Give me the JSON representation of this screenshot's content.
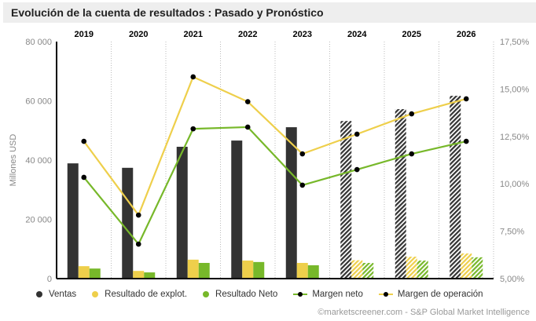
{
  "title": "Evolución de la cuenta de resultados : Pasado y Pronóstico",
  "colors": {
    "ventas": "#333333",
    "explot": "#eecf4b",
    "neto": "#77b82a",
    "margen_neto_line": "#77b82a",
    "margen_op_line": "#eecf4b",
    "title_bg": "#eeeeee"
  },
  "credit": "©marketscreener.com - S&P Global Market Intelligence",
  "chart_data": {
    "type": "bar",
    "title": "Evolución de la cuenta de resultados : Pasado y Pronóstico",
    "categories": [
      "2019",
      "2020",
      "2021",
      "2022",
      "2023",
      "2024",
      "2025",
      "2026"
    ],
    "forecast_from": "2024",
    "ylabel": "Millones USD",
    "ylim": [
      0,
      80000
    ],
    "yticks": [
      0,
      20000,
      40000,
      60000,
      80000
    ],
    "ytick_labels": [
      "0",
      "20 000",
      "40 000",
      "60 000",
      "80 000"
    ],
    "y2lim": [
      5,
      17.5
    ],
    "y2ticks": [
      5,
      7.5,
      10,
      12.5,
      15,
      17.5
    ],
    "y2tick_labels": [
      "5,00%",
      "7,50%",
      "10,00%",
      "12,50%",
      "15,00%",
      "17,50%"
    ],
    "grid": "vertical-dotted",
    "legend_position": "bottom",
    "series": [
      {
        "name": "Ventas",
        "kind": "bar",
        "axis": "left",
        "values": [
          38900,
          37400,
          44500,
          46600,
          51100,
          53200,
          57200,
          61700
        ]
      },
      {
        "name": "Resultado de explot.",
        "kind": "bar",
        "axis": "left",
        "values": [
          4200,
          2600,
          6400,
          6100,
          5300,
          6200,
          7400,
          8500
        ]
      },
      {
        "name": "Resultado Neto",
        "kind": "bar",
        "axis": "left",
        "values": [
          3400,
          2100,
          5300,
          5600,
          4500,
          5300,
          6100,
          7200
        ]
      },
      {
        "name": "Margen neto",
        "kind": "line",
        "axis": "right",
        "values": [
          10.34,
          6.82,
          12.9,
          12.99,
          9.93,
          10.75,
          11.58,
          12.24
        ]
      },
      {
        "name": "Margen de operación",
        "kind": "line",
        "axis": "right",
        "values": [
          12.24,
          8.35,
          15.64,
          14.33,
          11.58,
          12.62,
          13.69,
          14.48
        ]
      }
    ]
  }
}
